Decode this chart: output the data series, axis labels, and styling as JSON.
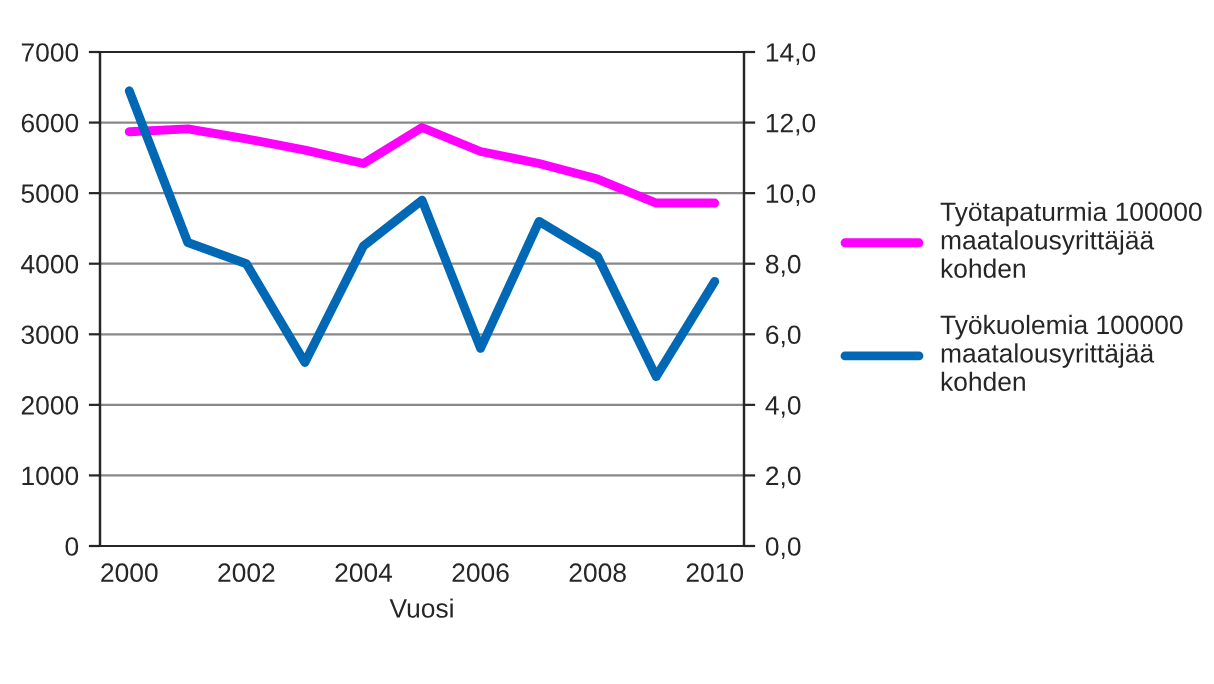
{
  "chart_data": {
    "type": "line",
    "xlabel": "Vuosi",
    "categories": [
      "2000",
      null,
      "2002",
      null,
      "2004",
      null,
      "2006",
      null,
      "2008",
      null,
      "2010"
    ],
    "series": [
      {
        "name": "Työtapaturmia 100000 maatalousyrittäjää kohden",
        "color": "#ff00ff",
        "values": [
          5870,
          5910,
          5770,
          5610,
          5420,
          5930,
          5590,
          5420,
          5200,
          4860,
          4860
        ]
      },
      {
        "name": "Työkuolemia 100000 maatalousyrittäjää kohden",
        "color": "#0068b4",
        "axis": "y2",
        "values": [
          12.9,
          8.6,
          8.0,
          5.2,
          8.5,
          9.8,
          5.6,
          9.2,
          8.2,
          4.8,
          7.5
        ]
      }
    ],
    "ylim": [
      0,
      7000
    ],
    "yticks": [
      0,
      1000,
      2000,
      3000,
      4000,
      5000,
      6000,
      7000
    ],
    "y2lim": [
      0,
      14
    ],
    "y2ticks": [
      {
        "value": 0,
        "label": "0,0"
      },
      {
        "value": 2,
        "label": "2,0"
      },
      {
        "value": 4,
        "label": "4,0"
      },
      {
        "value": 6,
        "label": "6,0"
      },
      {
        "value": 8,
        "label": "8,0"
      },
      {
        "value": 10,
        "label": "10,0"
      },
      {
        "value": 12,
        "label": "12,0"
      },
      {
        "value": 14,
        "label": "14,0"
      }
    ],
    "grid": "y",
    "legend": "right",
    "marker": "none",
    "line_style": "solid"
  }
}
